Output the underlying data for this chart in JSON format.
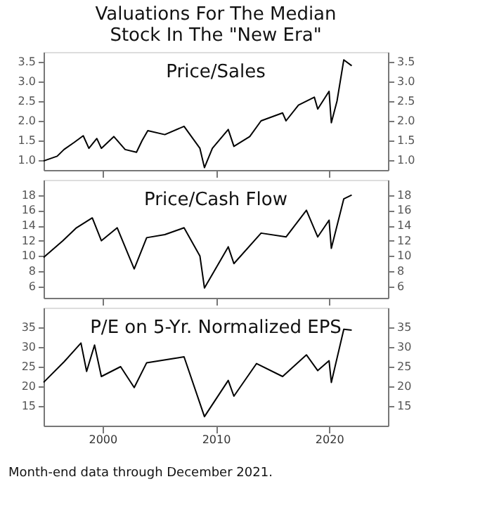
{
  "chart_data": [
    {
      "type": "line",
      "title": [
        "Valuations For The Median",
        "Stock In The \"New Era\""
      ],
      "tick_labels": "y",
      "grid": false,
      "xlim": [
        1994.8,
        2025.2
      ],
      "xticks": [
        2000,
        2010,
        2020
      ],
      "ylim": [
        0.75,
        3.75
      ],
      "yticks": [
        {
          "value": 1.0,
          "label": "1.0"
        },
        1.5,
        {
          "value": 2.0,
          "label": "2.0"
        },
        2.5,
        {
          "value": 3.0,
          "label": "3.0"
        },
        3.5
      ],
      "y2lim": [
        0.75,
        3.75
      ],
      "y2ticks": [
        {
          "value": 1.0,
          "label": "1.0"
        },
        1.5,
        {
          "value": 2.0,
          "label": "2.0"
        },
        2.5,
        {
          "value": 3.0,
          "label": "3.0"
        },
        3.5
      ],
      "series": [
        {
          "name": "Price/Sales",
          "color": "#000000",
          "x": [
            1994.8,
            1996.0,
            1996.6,
            1997.5,
            1998.3,
            1998.8,
            1999.5,
            1999.9,
            2001.0,
            2002.0,
            2003.0,
            2003.5,
            2004.0,
            2005.5,
            2007.2,
            2008.6,
            2009.0,
            2009.7,
            2011.1,
            2011.6,
            2013.0,
            2014.0,
            2015.9,
            2016.2,
            2017.3,
            2018.7,
            2019.0,
            2020.0,
            2020.2,
            2020.7,
            2021.3,
            2022.0
          ],
          "values": [
            0.98,
            1.1,
            1.27,
            1.45,
            1.62,
            1.3,
            1.55,
            1.3,
            1.6,
            1.27,
            1.2,
            1.5,
            1.75,
            1.65,
            1.86,
            1.3,
            0.81,
            1.3,
            1.78,
            1.35,
            1.6,
            2.0,
            2.2,
            2.0,
            2.4,
            2.6,
            2.3,
            2.75,
            1.95,
            2.5,
            3.55,
            3.4
          ]
        }
      ]
    },
    {
      "type": "line",
      "tick_labels": "y",
      "grid": false,
      "xlim": [
        1994.8,
        2025.2
      ],
      "xticks": [
        2000,
        2010,
        2020
      ],
      "ylim": [
        4.5,
        20
      ],
      "yticks": [
        6,
        8,
        10,
        12,
        14,
        16,
        18
      ],
      "y2lim": [
        4.5,
        20
      ],
      "y2ticks": [
        6,
        8,
        10,
        12,
        14,
        16,
        18
      ],
      "series": [
        {
          "name": "Price/Cash Flow",
          "color": "#000000",
          "x": [
            1994.8,
            1996.5,
            1997.7,
            1999.1,
            1999.9,
            2001.3,
            2002.8,
            2003.9,
            2005.5,
            2007.2,
            2008.6,
            2009.0,
            2011.1,
            2011.6,
            2014.0,
            2016.2,
            2018.0,
            2019.0,
            2020.0,
            2020.2,
            2021.3,
            2022.0
          ],
          "values": [
            9.8,
            12.0,
            13.7,
            15.0,
            12.0,
            13.7,
            8.3,
            12.4,
            12.8,
            13.7,
            10.0,
            5.8,
            11.2,
            9.0,
            13.0,
            12.5,
            16.0,
            12.5,
            14.7,
            11.0,
            17.5,
            18.0
          ]
        }
      ]
    },
    {
      "type": "line",
      "tick_labels": true,
      "grid": false,
      "xlim": [
        1994.8,
        2025.2
      ],
      "xticks": [
        2000,
        2010,
        2020
      ],
      "ylim": [
        10,
        40
      ],
      "yticks": [
        15,
        20,
        25,
        30,
        35
      ],
      "y2lim": [
        10,
        40
      ],
      "y2ticks": [
        15,
        20,
        25,
        30,
        35
      ],
      "annotations": [
        "Month-end data through December 2021."
      ],
      "series": [
        {
          "name": "P/E on 5-Yr. Normalized EPS",
          "color": "#000000",
          "x": [
            1994.8,
            1996.6,
            1998.1,
            1998.6,
            1999.3,
            1999.9,
            2001.6,
            2002.8,
            2003.9,
            2007.2,
            2009.0,
            2011.1,
            2011.6,
            2013.6,
            2015.9,
            2018.0,
            2019.0,
            2020.0,
            2020.2,
            2021.3,
            2022.0
          ],
          "values": [
            21.0,
            26.2,
            31.0,
            23.8,
            30.5,
            22.5,
            25.0,
            19.7,
            26.0,
            27.5,
            12.3,
            21.5,
            17.5,
            25.8,
            22.5,
            28.0,
            24.0,
            26.5,
            21.0,
            34.5,
            34.3
          ]
        }
      ]
    }
  ]
}
